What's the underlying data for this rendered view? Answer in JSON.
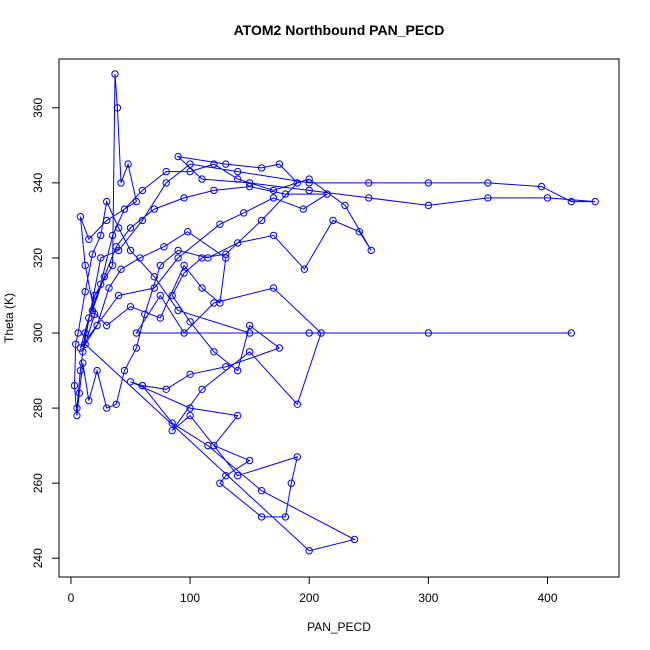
{
  "chart_data": {
    "type": "scatter",
    "title": "ATOM2 Northbound PAN_PECD",
    "xlabel": "PAN_PECD",
    "ylabel": "Theta (K)",
    "xlim": [
      -10,
      460
    ],
    "ylim": [
      235,
      373
    ],
    "xticks": [
      0,
      100,
      200,
      300,
      400
    ],
    "yticks": [
      240,
      260,
      280,
      300,
      320,
      340,
      360
    ],
    "grid": false,
    "legend": "none",
    "line_color": "#0000ff",
    "series": [
      {
        "values": [
          [
            5,
            280
          ],
          [
            8,
            290
          ],
          [
            12,
            300
          ],
          [
            20,
            310
          ],
          [
            35,
            318
          ],
          [
            37,
            369
          ],
          [
            39,
            360
          ],
          [
            42,
            340
          ],
          [
            48,
            345
          ],
          [
            55,
            335
          ],
          [
            30,
            330
          ],
          [
            15,
            325
          ],
          [
            8,
            331
          ],
          [
            12,
            318
          ],
          [
            20,
            305
          ],
          [
            10,
            295
          ],
          [
            25,
            320
          ],
          [
            40,
            322
          ],
          [
            60,
            330
          ],
          [
            80,
            340
          ],
          [
            100,
            345
          ],
          [
            140,
            343
          ],
          [
            200,
            340
          ],
          [
            250,
            340
          ],
          [
            300,
            340
          ],
          [
            350,
            340
          ],
          [
            395,
            339
          ],
          [
            420,
            335
          ],
          [
            440,
            335
          ],
          [
            400,
            336
          ],
          [
            350,
            336
          ],
          [
            300,
            334
          ],
          [
            250,
            336
          ],
          [
            200,
            338
          ],
          [
            150,
            340
          ],
          [
            110,
            341
          ],
          [
            90,
            347
          ],
          [
            130,
            345
          ],
          [
            160,
            344
          ],
          [
            175,
            345
          ],
          [
            190,
            340
          ],
          [
            160,
            330
          ],
          [
            130,
            321
          ],
          [
            110,
            320
          ],
          [
            95,
            316
          ],
          [
            85,
            310
          ],
          [
            100,
            303
          ],
          [
            120,
            295
          ],
          [
            140,
            290
          ],
          [
            150,
            302
          ],
          [
            175,
            296
          ],
          [
            130,
            291
          ],
          [
            100,
            289
          ],
          [
            80,
            285
          ],
          [
            60,
            286
          ],
          [
            50,
            287
          ],
          [
            100,
            280
          ],
          [
            140,
            278
          ],
          [
            120,
            270
          ],
          [
            150,
            266
          ],
          [
            130,
            262
          ],
          [
            125,
            260
          ],
          [
            160,
            251
          ],
          [
            180,
            251
          ],
          [
            185,
            260
          ],
          [
            190,
            267
          ],
          [
            140,
            262
          ],
          [
            100,
            278
          ],
          [
            85,
            274
          ],
          [
            110,
            285
          ],
          [
            150,
            295
          ],
          [
            190,
            281
          ],
          [
            210,
            300
          ],
          [
            170,
            312
          ],
          [
            120,
            308
          ],
          [
            95,
            300
          ],
          [
            75,
            310
          ],
          [
            55,
            300
          ],
          [
            420,
            300
          ],
          [
            300,
            300
          ],
          [
            200,
            300
          ],
          [
            150,
            300
          ],
          [
            90,
            306
          ],
          [
            70,
            315
          ],
          [
            50,
            322
          ],
          [
            40,
            328
          ],
          [
            30,
            335
          ],
          [
            25,
            326
          ],
          [
            18,
            321
          ],
          [
            12,
            311
          ],
          [
            6,
            300
          ],
          [
            4,
            297
          ],
          [
            3,
            286
          ],
          [
            5,
            278
          ],
          [
            7,
            284
          ],
          [
            10,
            292
          ],
          [
            15,
            282
          ],
          [
            22,
            290
          ],
          [
            30,
            280
          ],
          [
            38,
            281
          ],
          [
            45,
            290
          ],
          [
            55,
            296
          ],
          [
            62,
            305
          ],
          [
            75,
            318
          ],
          [
            90,
            322
          ],
          [
            115,
            320
          ],
          [
            140,
            324
          ],
          [
            170,
            326
          ],
          [
            196,
            317
          ],
          [
            220,
            330
          ],
          [
            242,
            327
          ],
          [
            252,
            322
          ],
          [
            230,
            334
          ],
          [
            200,
            341
          ],
          [
            170,
            338
          ],
          [
            140,
            341
          ],
          [
            120,
            345
          ],
          [
            100,
            343
          ],
          [
            80,
            343
          ],
          [
            60,
            338
          ],
          [
            45,
            333
          ],
          [
            35,
            326
          ],
          [
            25,
            313
          ],
          [
            15,
            304
          ],
          [
            8,
            296
          ],
          [
            40,
            310
          ],
          [
            70,
            312
          ],
          [
            90,
            320
          ],
          [
            125,
            329
          ],
          [
            145,
            332
          ],
          [
            170,
            336
          ],
          [
            195,
            333
          ],
          [
            215,
            337
          ],
          [
            180,
            337
          ],
          [
            150,
            339
          ],
          [
            120,
            338
          ],
          [
            95,
            336
          ],
          [
            70,
            333
          ],
          [
            50,
            328
          ],
          [
            38,
            323
          ],
          [
            28,
            315
          ],
          [
            18,
            306
          ],
          [
            30,
            302
          ],
          [
            50,
            307
          ],
          [
            75,
            304
          ],
          [
            95,
            318
          ],
          [
            110,
            312
          ],
          [
            125,
            308
          ],
          [
            130,
            320
          ],
          [
            98,
            327
          ],
          [
            78,
            323
          ],
          [
            58,
            320
          ],
          [
            42,
            317
          ],
          [
            32,
            312
          ],
          [
            22,
            302
          ],
          [
            12,
            297
          ],
          [
            200,
            242
          ],
          [
            238,
            245
          ],
          [
            160,
            258
          ],
          [
            115,
            270
          ],
          [
            85,
            276
          ],
          [
            60,
            286
          ]
        ]
      }
    ]
  }
}
